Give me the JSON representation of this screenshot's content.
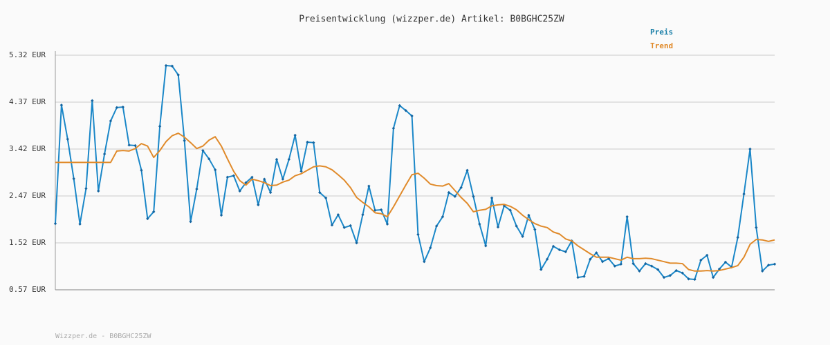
{
  "chart_data": {
    "type": "line",
    "title": "Preisentwicklung (wizzper.de) Artikel: B0BGHC25ZW",
    "footer": "Wizzper.de - B0BGHC25ZW",
    "ylim": [
      0.57,
      5.32
    ],
    "yticks": [
      {
        "value": 0.57,
        "label": "0.57 EUR"
      },
      {
        "value": 1.52,
        "label": "1.52 EUR"
      },
      {
        "value": 2.47,
        "label": "2.47 EUR"
      },
      {
        "value": 3.42,
        "label": "3.42 EUR"
      },
      {
        "value": 4.37,
        "label": "4.37 EUR"
      },
      {
        "value": 5.32,
        "label": "5.32 EUR"
      }
    ],
    "grid": true,
    "legend": "top-right",
    "series": [
      {
        "name": "Preis",
        "color": "#1a87c8",
        "markers": true,
        "values": [
          1.91,
          4.31,
          3.62,
          2.82,
          1.9,
          2.62,
          4.4,
          2.57,
          3.32,
          3.99,
          4.26,
          4.27,
          3.5,
          3.49,
          2.99,
          2.01,
          2.15,
          3.88,
          5.11,
          5.1,
          4.92,
          3.59,
          1.95,
          2.61,
          3.39,
          3.22,
          3.0,
          2.08,
          2.85,
          2.88,
          2.57,
          2.74,
          2.85,
          2.29,
          2.81,
          2.54,
          3.21,
          2.81,
          3.21,
          3.7,
          2.97,
          3.56,
          3.55,
          2.54,
          2.43,
          1.88,
          2.09,
          1.83,
          1.87,
          1.52,
          2.09,
          2.67,
          2.18,
          2.19,
          1.9,
          3.84,
          4.3,
          4.2,
          4.09,
          1.69,
          1.14,
          1.42,
          1.86,
          2.05,
          2.54,
          2.46,
          2.64,
          2.99,
          2.46,
          1.9,
          1.46,
          2.43,
          1.84,
          2.27,
          2.18,
          1.86,
          1.65,
          2.08,
          1.79,
          0.98,
          1.19,
          1.45,
          1.38,
          1.34,
          1.56,
          0.82,
          0.84,
          1.19,
          1.32,
          1.14,
          1.2,
          1.05,
          1.09,
          2.05,
          1.1,
          0.95,
          1.1,
          1.05,
          0.98,
          0.82,
          0.86,
          0.96,
          0.91,
          0.79,
          0.78,
          1.17,
          1.27,
          0.82,
          0.99,
          1.13,
          1.03,
          1.63,
          2.51,
          3.42,
          1.83,
          0.95,
          1.07,
          1.09
        ]
      },
      {
        "name": "Trend",
        "color": "#e08a2a",
        "markers": false,
        "values": [
          3.15,
          3.15,
          3.15,
          3.15,
          3.15,
          3.15,
          3.15,
          3.15,
          3.15,
          3.15,
          3.38,
          3.39,
          3.38,
          3.43,
          3.53,
          3.48,
          3.25,
          3.39,
          3.57,
          3.69,
          3.74,
          3.66,
          3.55,
          3.43,
          3.48,
          3.6,
          3.67,
          3.48,
          3.22,
          2.97,
          2.78,
          2.69,
          2.81,
          2.78,
          2.74,
          2.68,
          2.69,
          2.75,
          2.79,
          2.88,
          2.92,
          2.99,
          3.06,
          3.08,
          3.06,
          3.0,
          2.9,
          2.79,
          2.64,
          2.44,
          2.34,
          2.25,
          2.13,
          2.11,
          2.05,
          2.25,
          2.47,
          2.69,
          2.9,
          2.93,
          2.83,
          2.71,
          2.68,
          2.67,
          2.72,
          2.58,
          2.44,
          2.32,
          2.15,
          2.18,
          2.2,
          2.27,
          2.29,
          2.3,
          2.26,
          2.19,
          2.08,
          1.99,
          1.91,
          1.86,
          1.83,
          1.74,
          1.7,
          1.6,
          1.56,
          1.46,
          1.38,
          1.3,
          1.23,
          1.23,
          1.23,
          1.2,
          1.17,
          1.23,
          1.2,
          1.2,
          1.21,
          1.2,
          1.17,
          1.14,
          1.11,
          1.11,
          1.1,
          0.98,
          0.95,
          0.95,
          0.96,
          0.95,
          0.96,
          0.99,
          1.02,
          1.06,
          1.23,
          1.49,
          1.59,
          1.58,
          1.55,
          1.58
        ]
      }
    ]
  }
}
